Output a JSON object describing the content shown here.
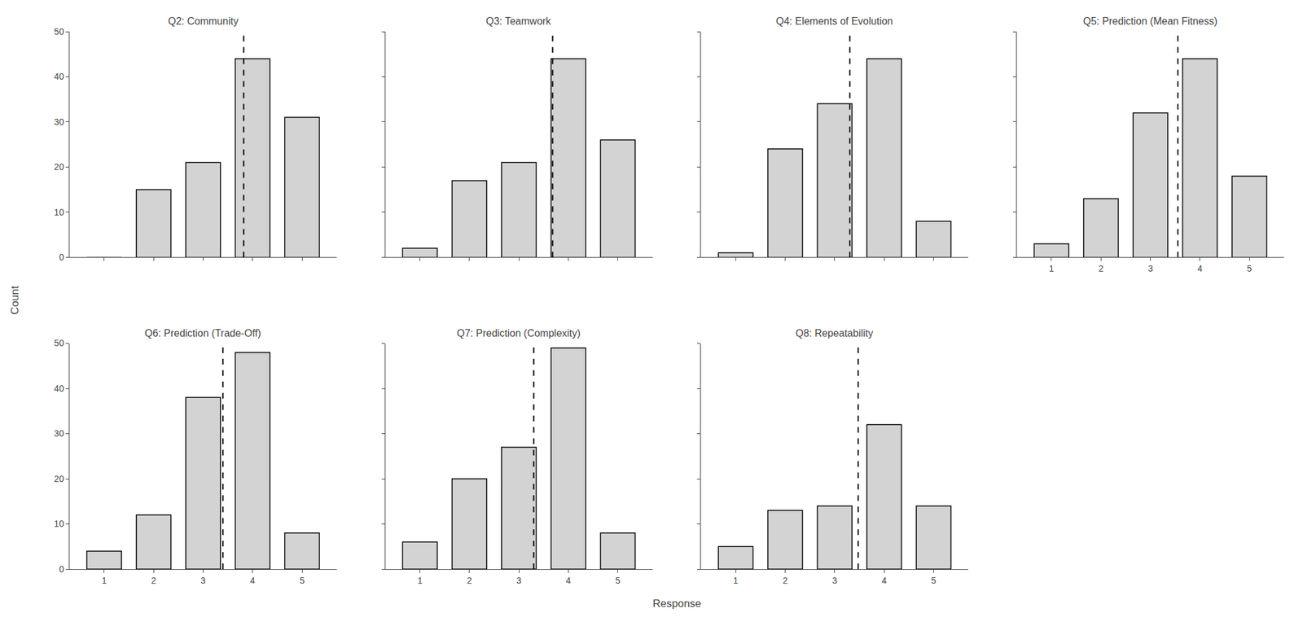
{
  "xlabel": "Response",
  "ylabel": "Count",
  "chart_data": [
    {
      "type": "bar",
      "title": "Q2: Community",
      "x": [
        1,
        2,
        3,
        4,
        5
      ],
      "values": [
        0,
        15,
        21,
        44,
        31
      ],
      "mean": 3.81981981981982,
      "color": "#d3d3d3",
      "xlim": [
        0.3,
        5.7
      ],
      "xticks": [
        1,
        2,
        3,
        4,
        5
      ],
      "ylim": [
        0,
        50
      ],
      "yticks": [
        0,
        10,
        20,
        30,
        40,
        50
      ],
      "grid": false,
      "tick_labels": "y"
    },
    {
      "type": "bar",
      "title": "Q3: Teamwork",
      "x": [
        1,
        2,
        3,
        4,
        5
      ],
      "values": [
        2,
        17,
        21,
        44,
        26
      ],
      "mean": 3.6818181818181817,
      "color": "#d3d3d3",
      "xlim": [
        0.3,
        5.7
      ],
      "xticks": [
        1,
        2,
        3,
        4,
        5
      ],
      "ylim": [
        0,
        50
      ],
      "yticks": [
        0,
        10,
        20,
        30,
        40,
        50
      ],
      "grid": false,
      "tick_labels": false
    },
    {
      "type": "bar",
      "title": "Q4: Elements of Evolution",
      "x": [
        1,
        2,
        3,
        4,
        5
      ],
      "values": [
        1,
        24,
        34,
        44,
        8
      ],
      "mean": 3.3063063063063063,
      "color": "#d3d3d3",
      "xlim": [
        0.3,
        5.7
      ],
      "xticks": [
        1,
        2,
        3,
        4,
        5
      ],
      "ylim": [
        0,
        50
      ],
      "yticks": [
        0,
        10,
        20,
        30,
        40,
        50
      ],
      "grid": false,
      "tick_labels": false
    },
    {
      "type": "bar",
      "title": "Q5: Prediction (Mean Fitness)",
      "x": [
        1,
        2,
        3,
        4,
        5
      ],
      "values": [
        3,
        13,
        32,
        44,
        18
      ],
      "mean": 3.5545454545454547,
      "color": "#d3d3d3",
      "xlim": [
        0.3,
        5.7
      ],
      "xticks": [
        1,
        2,
        3,
        4,
        5
      ],
      "ylim": [
        0,
        50
      ],
      "yticks": [
        0,
        10,
        20,
        30,
        40,
        50
      ],
      "grid": false,
      "tick_labels": "x"
    },
    {
      "type": "bar",
      "title": "Q6: Prediction (Trade-Off)",
      "x": [
        1,
        2,
        3,
        4,
        5
      ],
      "values": [
        4,
        12,
        38,
        48,
        8
      ],
      "mean": 3.4,
      "color": "#d3d3d3",
      "xlim": [
        0.3,
        5.7
      ],
      "xticks": [
        1,
        2,
        3,
        4,
        5
      ],
      "ylim": [
        0,
        50
      ],
      "yticks": [
        0,
        10,
        20,
        30,
        40,
        50
      ],
      "grid": false
    },
    {
      "type": "bar",
      "title": "Q7: Prediction (Complexity)",
      "x": [
        1,
        2,
        3,
        4,
        5
      ],
      "values": [
        6,
        20,
        27,
        49,
        8
      ],
      "mean": 3.3,
      "color": "#d3d3d3",
      "xlim": [
        0.3,
        5.7
      ],
      "xticks": [
        1,
        2,
        3,
        4,
        5
      ],
      "ylim": [
        0,
        50
      ],
      "yticks": [
        0,
        10,
        20,
        30,
        40,
        50
      ],
      "grid": false,
      "tick_labels": "x"
    },
    {
      "type": "bar",
      "title": "Q8: Repeatability",
      "x": [
        1,
        2,
        3,
        4,
        5
      ],
      "values": [
        5,
        13,
        14,
        32,
        14
      ],
      "mean": 3.4743589743589745,
      "color": "#d3d3d3",
      "xlim": [
        0.3,
        5.7
      ],
      "xticks": [
        1,
        2,
        3,
        4,
        5
      ],
      "ylim": [
        0,
        50
      ],
      "yticks": [
        0,
        10,
        20,
        30,
        40,
        50
      ],
      "grid": false,
      "tick_labels": "x"
    }
  ]
}
